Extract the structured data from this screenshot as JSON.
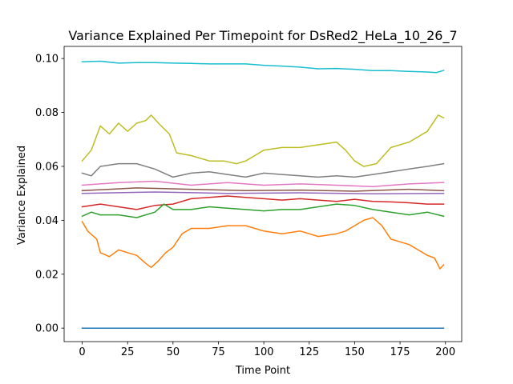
{
  "chart_data": {
    "type": "line",
    "title": "Variance Explained Per Timepoint for DsRed2_HeLa_10_26_7",
    "xlabel": "Time Point",
    "ylabel": "Variance Explained",
    "xlim": [
      -9.95,
      208.95
    ],
    "ylim": [
      -0.005,
      0.1045
    ],
    "xticks": [
      0,
      25,
      50,
      75,
      100,
      125,
      150,
      175,
      200
    ],
    "xtick_labels": [
      "0",
      "25",
      "50",
      "75",
      "100",
      "125",
      "150",
      "175",
      "200"
    ],
    "yticks": [
      0.0,
      0.02,
      0.04,
      0.06,
      0.08,
      0.1
    ],
    "ytick_labels": [
      "0.00",
      "0.02",
      "0.04",
      "0.06",
      "0.08",
      "0.10"
    ],
    "grid": false,
    "legend": "none",
    "series": [
      {
        "color": "#17becf",
        "points": [
          [
            0,
            0.0988
          ],
          [
            10,
            0.099
          ],
          [
            20,
            0.0983
          ],
          [
            30,
            0.0985
          ],
          [
            40,
            0.0985
          ],
          [
            50,
            0.0983
          ],
          [
            60,
            0.0982
          ],
          [
            70,
            0.098
          ],
          [
            80,
            0.098
          ],
          [
            90,
            0.098
          ],
          [
            100,
            0.0975
          ],
          [
            110,
            0.0972
          ],
          [
            120,
            0.0968
          ],
          [
            130,
            0.0962
          ],
          [
            140,
            0.0963
          ],
          [
            150,
            0.096
          ],
          [
            160,
            0.0955
          ],
          [
            170,
            0.0955
          ],
          [
            180,
            0.0952
          ],
          [
            190,
            0.095
          ],
          [
            195,
            0.0948
          ],
          [
            199,
            0.0956
          ]
        ]
      },
      {
        "color": "#bcbd22",
        "points": [
          [
            0,
            0.062
          ],
          [
            5,
            0.066
          ],
          [
            10,
            0.075
          ],
          [
            15,
            0.072
          ],
          [
            20,
            0.076
          ],
          [
            25,
            0.073
          ],
          [
            30,
            0.076
          ],
          [
            35,
            0.077
          ],
          [
            38,
            0.079
          ],
          [
            42,
            0.076
          ],
          [
            48,
            0.072
          ],
          [
            52,
            0.065
          ],
          [
            60,
            0.064
          ],
          [
            70,
            0.062
          ],
          [
            78,
            0.062
          ],
          [
            85,
            0.061
          ],
          [
            90,
            0.062
          ],
          [
            95,
            0.064
          ],
          [
            100,
            0.066
          ],
          [
            110,
            0.067
          ],
          [
            120,
            0.067
          ],
          [
            130,
            0.068
          ],
          [
            140,
            0.069
          ],
          [
            145,
            0.066
          ],
          [
            150,
            0.062
          ],
          [
            155,
            0.06
          ],
          [
            162,
            0.061
          ],
          [
            170,
            0.067
          ],
          [
            180,
            0.069
          ],
          [
            190,
            0.073
          ],
          [
            196,
            0.079
          ],
          [
            199,
            0.078
          ]
        ]
      },
      {
        "color": "#7f7f7f",
        "points": [
          [
            0,
            0.0575
          ],
          [
            5,
            0.0565
          ],
          [
            10,
            0.06
          ],
          [
            20,
            0.061
          ],
          [
            30,
            0.061
          ],
          [
            40,
            0.059
          ],
          [
            50,
            0.056
          ],
          [
            60,
            0.0575
          ],
          [
            70,
            0.058
          ],
          [
            80,
            0.057
          ],
          [
            90,
            0.056
          ],
          [
            100,
            0.0575
          ],
          [
            110,
            0.057
          ],
          [
            120,
            0.0565
          ],
          [
            130,
            0.056
          ],
          [
            140,
            0.0565
          ],
          [
            150,
            0.056
          ],
          [
            160,
            0.057
          ],
          [
            170,
            0.058
          ],
          [
            180,
            0.059
          ],
          [
            190,
            0.06
          ],
          [
            199,
            0.061
          ]
        ]
      },
      {
        "color": "#e377c2",
        "points": [
          [
            0,
            0.053
          ],
          [
            20,
            0.054
          ],
          [
            40,
            0.0545
          ],
          [
            60,
            0.053
          ],
          [
            80,
            0.054
          ],
          [
            100,
            0.053
          ],
          [
            120,
            0.0535
          ],
          [
            140,
            0.053
          ],
          [
            160,
            0.0525
          ],
          [
            180,
            0.0535
          ],
          [
            199,
            0.054
          ]
        ]
      },
      {
        "color": "#8c564b",
        "points": [
          [
            0,
            0.051
          ],
          [
            30,
            0.052
          ],
          [
            60,
            0.0515
          ],
          [
            90,
            0.051
          ],
          [
            120,
            0.0512
          ],
          [
            150,
            0.0508
          ],
          [
            180,
            0.0515
          ],
          [
            199,
            0.051
          ]
        ]
      },
      {
        "color": "#9467bd",
        "points": [
          [
            0,
            0.05
          ],
          [
            40,
            0.0505
          ],
          [
            80,
            0.05
          ],
          [
            120,
            0.0502
          ],
          [
            160,
            0.0498
          ],
          [
            199,
            0.05
          ]
        ]
      },
      {
        "color": "#d62728",
        "points": [
          [
            0,
            0.045
          ],
          [
            10,
            0.046
          ],
          [
            20,
            0.045
          ],
          [
            30,
            0.044
          ],
          [
            40,
            0.0455
          ],
          [
            50,
            0.046
          ],
          [
            60,
            0.048
          ],
          [
            70,
            0.0485
          ],
          [
            80,
            0.049
          ],
          [
            90,
            0.0485
          ],
          [
            100,
            0.048
          ],
          [
            110,
            0.0475
          ],
          [
            120,
            0.048
          ],
          [
            130,
            0.0475
          ],
          [
            140,
            0.047
          ],
          [
            150,
            0.0478
          ],
          [
            160,
            0.047
          ],
          [
            170,
            0.0468
          ],
          [
            180,
            0.0465
          ],
          [
            190,
            0.046
          ],
          [
            199,
            0.046
          ]
        ]
      },
      {
        "color": "#2ca02c",
        "points": [
          [
            0,
            0.0415
          ],
          [
            5,
            0.043
          ],
          [
            10,
            0.042
          ],
          [
            20,
            0.042
          ],
          [
            30,
            0.041
          ],
          [
            40,
            0.043
          ],
          [
            45,
            0.046
          ],
          [
            50,
            0.044
          ],
          [
            60,
            0.044
          ],
          [
            70,
            0.045
          ],
          [
            80,
            0.0445
          ],
          [
            90,
            0.044
          ],
          [
            100,
            0.0435
          ],
          [
            110,
            0.044
          ],
          [
            120,
            0.044
          ],
          [
            130,
            0.045
          ],
          [
            140,
            0.046
          ],
          [
            150,
            0.0455
          ],
          [
            160,
            0.044
          ],
          [
            170,
            0.043
          ],
          [
            180,
            0.042
          ],
          [
            190,
            0.043
          ],
          [
            199,
            0.0415
          ]
        ]
      },
      {
        "color": "#ff7f0e",
        "points": [
          [
            0,
            0.0395
          ],
          [
            3,
            0.036
          ],
          [
            8,
            0.033
          ],
          [
            10,
            0.028
          ],
          [
            15,
            0.0265
          ],
          [
            20,
            0.029
          ],
          [
            25,
            0.028
          ],
          [
            30,
            0.027
          ],
          [
            35,
            0.024
          ],
          [
            38,
            0.0225
          ],
          [
            42,
            0.025
          ],
          [
            46,
            0.028
          ],
          [
            50,
            0.03
          ],
          [
            55,
            0.035
          ],
          [
            60,
            0.037
          ],
          [
            70,
            0.037
          ],
          [
            80,
            0.038
          ],
          [
            90,
            0.038
          ],
          [
            95,
            0.037
          ],
          [
            100,
            0.036
          ],
          [
            110,
            0.035
          ],
          [
            120,
            0.036
          ],
          [
            130,
            0.034
          ],
          [
            140,
            0.035
          ],
          [
            145,
            0.036
          ],
          [
            150,
            0.038
          ],
          [
            155,
            0.04
          ],
          [
            160,
            0.041
          ],
          [
            165,
            0.038
          ],
          [
            170,
            0.033
          ],
          [
            175,
            0.032
          ],
          [
            180,
            0.031
          ],
          [
            185,
            0.029
          ],
          [
            190,
            0.027
          ],
          [
            194,
            0.026
          ],
          [
            197,
            0.022
          ],
          [
            199,
            0.0235
          ]
        ]
      },
      {
        "color": "#1f77b4",
        "points": [
          [
            0,
            0.0
          ],
          [
            199,
            0.0
          ]
        ]
      }
    ]
  }
}
